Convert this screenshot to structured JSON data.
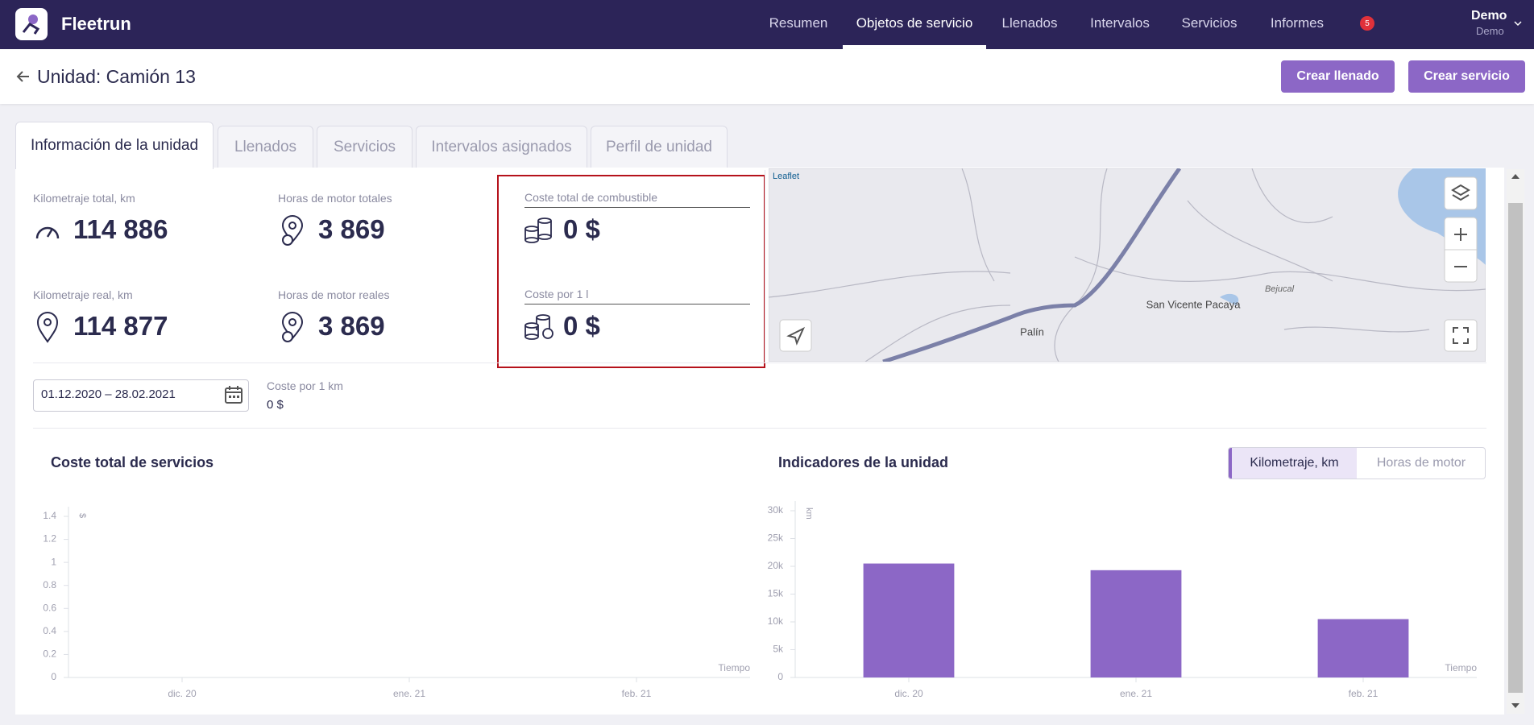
{
  "header": {
    "brand": "Fleetrun",
    "nav": [
      "Resumen",
      "Objetos de servicio",
      "Llenados",
      "Intervalos",
      "Servicios",
      "Informes"
    ],
    "notifications": "5",
    "user": "Demo",
    "account": "Demo"
  },
  "page": {
    "title": "Unidad: Camión 13",
    "actions": [
      "Crear llenado",
      "Crear servicio"
    ]
  },
  "tabs": [
    "Información de la unidad",
    "Llenados",
    "Servicios",
    "Intervalos asignados",
    "Perfil de unidad"
  ],
  "stats": [
    {
      "label": "Kilometraje total, km",
      "value": "114 886"
    },
    {
      "label": "Horas de motor totales",
      "value": "3 869"
    },
    {
      "label": "Kilometraje real, km",
      "value": "114 877"
    },
    {
      "label": "Horas de motor reales",
      "value": "3 869"
    }
  ],
  "costs": [
    {
      "label": "Coste total de combustible",
      "value": "0 $"
    },
    {
      "label": "Coste por 1 l",
      "value": "0 $"
    }
  ],
  "map": {
    "attribution": "Leaflet",
    "places": [
      "San Vicente Pacaya",
      "Palín",
      "Bejucal"
    ]
  },
  "period": "01.12.2020 – 28.02.2021",
  "cost_per_km": {
    "label": "Coste por 1 km",
    "value": "0 $"
  },
  "charts": [
    {
      "type": "bar",
      "title": "Coste total de servicios",
      "y_label": "$",
      "x_label": "Tiempo",
      "categories": [
        "dic. 20",
        "ene. 21",
        "feb. 21"
      ],
      "values": [
        0,
        0,
        0
      ],
      "color": "#8c67c6",
      "ylim": [
        0,
        1.4
      ],
      "yticks": [
        0,
        0.2,
        0.4,
        0.6,
        0.8,
        1,
        1.2,
        1.4
      ]
    },
    {
      "type": "bar",
      "title": "Indicadores de la unidad",
      "toggle": [
        "Kilometraje, km",
        "Horas de motor"
      ],
      "y_label": "km",
      "x_label": "Tiempo",
      "categories": [
        "dic. 20",
        "ene. 21",
        "feb. 21"
      ],
      "values": [
        20500,
        19300,
        10500
      ],
      "color": "#8c67c6",
      "ylim": [
        0,
        30000
      ],
      "yticks": [
        0,
        {
          "value": 5000,
          "label": "5k"
        },
        {
          "value": 10000,
          "label": "10k"
        },
        {
          "value": 15000,
          "label": "15k"
        },
        {
          "value": 20000,
          "label": "20k"
        },
        {
          "value": 25000,
          "label": "25k"
        },
        {
          "value": 30000,
          "label": "30k"
        }
      ]
    }
  ]
}
